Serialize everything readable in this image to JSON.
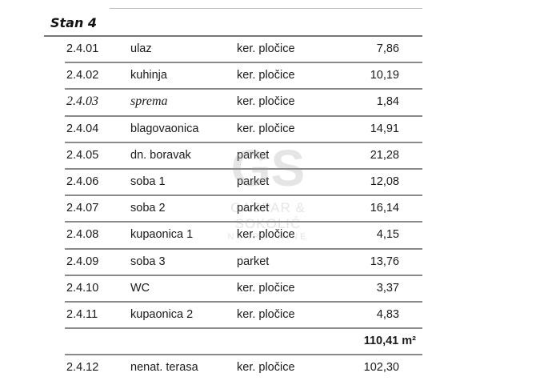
{
  "title": "Stan 4",
  "rows": [
    {
      "code": "2.4.01",
      "room": "ulaz",
      "floor": "ker. pločice",
      "area": "7,86"
    },
    {
      "code": "2.4.02",
      "room": "kuhinja",
      "floor": "ker. pločice",
      "area": "10,19"
    },
    {
      "code": "2.4.03",
      "room": "sprema",
      "floor": "ker. pločice",
      "area": "1,84"
    },
    {
      "code": "2.4.04",
      "room": "blagovaonica",
      "floor": "ker. pločice",
      "area": "14,91"
    },
    {
      "code": "2.4.05",
      "room": "dn. boravak",
      "floor": "parket",
      "area": "21,28"
    },
    {
      "code": "2.4.06",
      "room": "soba 1",
      "floor": "parket",
      "area": "12,08"
    },
    {
      "code": "2.4.07",
      "room": "soba 2",
      "floor": "parket",
      "area": "16,14"
    },
    {
      "code": "2.4.08",
      "room": "kupaonica 1",
      "floor": "ker. pločice",
      "area": "4,15"
    },
    {
      "code": "2.4.09",
      "room": "soba 3",
      "floor": "parket",
      "area": "13,76"
    },
    {
      "code": "2.4.10",
      "room": "WC",
      "floor": "ker. pločice",
      "area": "3,37"
    },
    {
      "code": "2.4.11",
      "room": "kupaonica 2",
      "floor": "ker. pločice",
      "area": "4,83"
    }
  ],
  "total": "110,41 m²",
  "terrace": {
    "code": "2.4.12",
    "room": "nenat. terasa",
    "floor": "ker. pločice",
    "area": "102,30"
  },
  "watermark": {
    "logo": "GS",
    "line1": "GASPAR & SOKOLIĆ",
    "line2": "NEKRETNINE"
  }
}
